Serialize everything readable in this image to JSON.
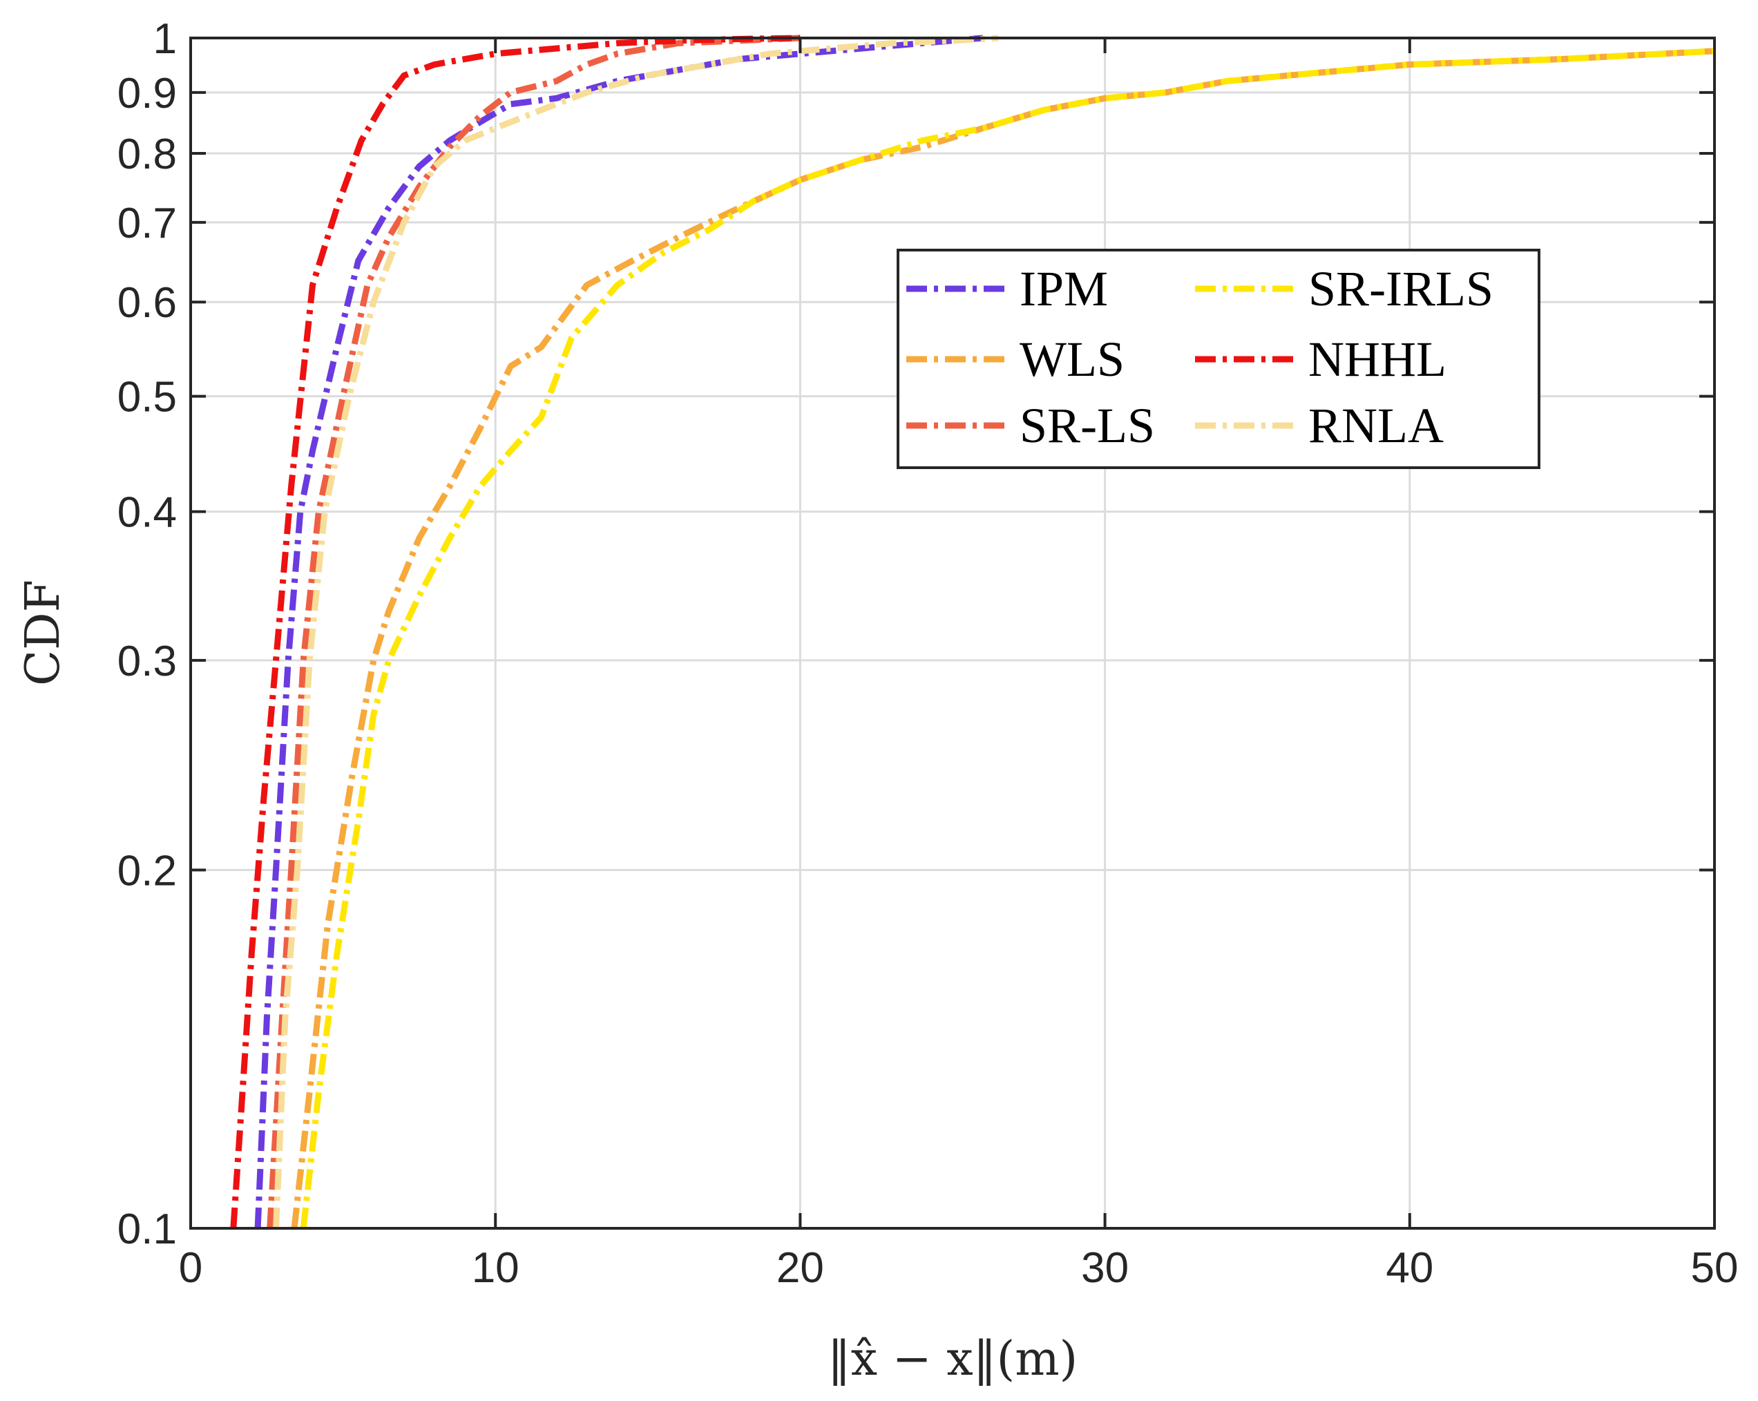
{
  "chart_data": {
    "type": "line",
    "title": "",
    "xlabel": "‖x̂ − x‖(m)",
    "ylabel": "CDF",
    "xlim": [
      0,
      50
    ],
    "ylim": [
      0.1,
      1
    ],
    "yscale": "log",
    "grid": true,
    "legend_position": "upper-right-center",
    "x_ticks": [
      0,
      10,
      20,
      30,
      40,
      50
    ],
    "x_tick_labels": [
      "0",
      "10",
      "20",
      "30",
      "40",
      "50"
    ],
    "y_ticks": [
      0.1,
      0.2,
      0.3,
      0.4,
      0.5,
      0.6,
      0.7,
      0.8,
      0.9,
      1
    ],
    "y_tick_labels": [
      "0.1",
      "0.2",
      "0.3",
      "0.4",
      "0.5",
      "0.6",
      "0.7",
      "0.8",
      "0.9",
      "1"
    ],
    "series": [
      {
        "name": "IPM",
        "color": "#6a3be0",
        "x": [
          2.2,
          2.5,
          2.8,
          3.2,
          3.6,
          4.0,
          4.8,
          5.5,
          6.5,
          7.5,
          8.5,
          9.5,
          10.5,
          12,
          14,
          16,
          18,
          20,
          22,
          24,
          26
        ],
        "y": [
          0.1,
          0.15,
          0.2,
          0.3,
          0.4,
          0.45,
          0.55,
          0.65,
          0.72,
          0.78,
          0.82,
          0.85,
          0.88,
          0.89,
          0.92,
          0.94,
          0.96,
          0.97,
          0.98,
          0.99,
          1.0
        ]
      },
      {
        "name": "WLS",
        "color": "#f7a93b",
        "x": [
          3.4,
          3.9,
          4.5,
          5.3,
          6.0,
          6.5,
          7.5,
          8.5,
          9.5,
          10.5,
          11.5,
          13,
          14.5,
          16,
          17,
          18,
          20,
          22,
          24,
          26,
          28,
          30,
          32,
          34,
          36,
          40,
          45,
          50
        ],
        "y": [
          0.1,
          0.13,
          0.18,
          0.24,
          0.3,
          0.33,
          0.38,
          0.42,
          0.47,
          0.53,
          0.55,
          0.62,
          0.65,
          0.68,
          0.7,
          0.72,
          0.76,
          0.79,
          0.81,
          0.84,
          0.87,
          0.89,
          0.9,
          0.92,
          0.93,
          0.95,
          0.96,
          0.975
        ]
      },
      {
        "name": "SR-LS",
        "color": "#ee6044",
        "x": [
          2.6,
          3.0,
          3.3,
          3.7,
          4.2,
          5.0,
          5.8,
          6.5,
          7.5,
          8.5,
          9.5,
          10.5,
          12,
          13,
          14,
          16,
          18,
          20
        ],
        "y": [
          0.1,
          0.15,
          0.2,
          0.3,
          0.4,
          0.5,
          0.62,
          0.68,
          0.75,
          0.81,
          0.86,
          0.9,
          0.92,
          0.95,
          0.97,
          0.99,
          0.995,
          1.0
        ]
      },
      {
        "name": "SR-IRLS",
        "color": "#ffe600",
        "x": [
          3.7,
          4.2,
          4.8,
          5.5,
          6.0,
          6.5,
          7.5,
          8.5,
          9.5,
          10.5,
          11.5,
          12.5,
          14,
          15.5,
          17,
          18.5,
          20,
          22,
          24,
          26,
          28,
          30,
          32,
          34,
          36,
          40,
          45,
          50
        ],
        "y": [
          0.1,
          0.13,
          0.17,
          0.22,
          0.27,
          0.3,
          0.34,
          0.38,
          0.42,
          0.45,
          0.48,
          0.56,
          0.62,
          0.66,
          0.69,
          0.73,
          0.76,
          0.79,
          0.82,
          0.84,
          0.87,
          0.89,
          0.9,
          0.92,
          0.93,
          0.95,
          0.96,
          0.975
        ]
      },
      {
        "name": "NHHL",
        "color": "#ee1111",
        "x": [
          1.4,
          1.7,
          2.0,
          2.4,
          2.8,
          3.3,
          4.0,
          4.8,
          5.6,
          6.3,
          7.0,
          8.0,
          9.0,
          10.0,
          12,
          14,
          16,
          18,
          20
        ],
        "y": [
          0.1,
          0.13,
          0.17,
          0.23,
          0.3,
          0.42,
          0.62,
          0.72,
          0.82,
          0.88,
          0.93,
          0.95,
          0.96,
          0.97,
          0.98,
          0.99,
          0.995,
          0.998,
          1.0
        ]
      },
      {
        "name": "RNLA",
        "color": "#f7dd97",
        "x": [
          2.8,
          3.1,
          3.5,
          3.9,
          4.4,
          5.2,
          6.0,
          7.0,
          8.0,
          9.0,
          10.0,
          11.5,
          13,
          15,
          17,
          19,
          21,
          23,
          25,
          26.5
        ],
        "y": [
          0.1,
          0.15,
          0.2,
          0.3,
          0.4,
          0.5,
          0.6,
          0.7,
          0.78,
          0.82,
          0.84,
          0.87,
          0.9,
          0.93,
          0.95,
          0.97,
          0.98,
          0.99,
          0.995,
          1.0
        ]
      }
    ]
  }
}
